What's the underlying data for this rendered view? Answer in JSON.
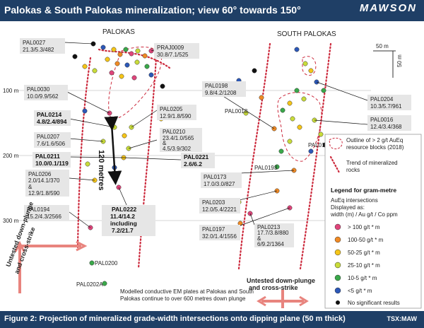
{
  "header": {
    "title": "Palokas & South Palokas mineralization; view 60° towards 150°",
    "logo": "MAWSON"
  },
  "footer": {
    "caption": "Figure 2: Projection of mineralized grade-width intersections onto dipping plane (50 m thick)",
    "tsx": "TSX:MAW"
  },
  "zones": {
    "palokas": "PALOKAS",
    "south_palokas": "SOUTH PALOKAS"
  },
  "depths": [
    "100 m",
    "200 m",
    "300 m"
  ],
  "scale": {
    "label": "50 m",
    "vlabel": "50 m"
  },
  "callout": "120 metres",
  "holes": {
    "pal0027": [
      "PAL0027",
      "21.3/5.3/482"
    ],
    "praj0009": [
      "PRAJ0009",
      "30.8/7.1/525"
    ],
    "pal0030": [
      "PAL0030",
      "10.0/9.9/562"
    ],
    "pal0214": [
      "PAL0214",
      "4.8/2.4/894"
    ],
    "pal0207": [
      "PAL0207",
      "7.6/1.6/506"
    ],
    "pal0211": [
      "PAL0211",
      "10.0/0.1/119"
    ],
    "pal0206": [
      "PAL0206",
      "2.0/14.1/370",
      "&",
      "12.9/1.8/590"
    ],
    "pal0194": [
      "PAL0194",
      "15.2/4.3/2566"
    ],
    "pal0205": [
      "PAL0205",
      "12.9/1.8/590"
    ],
    "pal0210": [
      "PAL0210",
      "23.4/1.0/565",
      "&",
      "4.5/3.9/302"
    ],
    "pal0221": [
      "PAL0221",
      "2.6/6.2"
    ],
    "pal0222": [
      "PAL0222",
      "11.4/14.2",
      "including",
      "7.2/21.7"
    ],
    "pal0173": [
      "PAL0173",
      "17.0/3.0/827"
    ],
    "pal0203": [
      "PAL0203",
      "12.0/5.4/2221"
    ],
    "pal0197": [
      "PAL0197",
      "32.0/1.4/1556"
    ],
    "pal0213": [
      "PAL0213",
      "17.7/3.8/880",
      "&",
      "6/9.2/1364"
    ],
    "pal0198": [
      "PAL0198",
      "9.8/4.2/1208"
    ],
    "pal0204": [
      "PAL0204",
      "10.3/5.7/961"
    ],
    "pal0016": [
      "PAL0016",
      "12.4/3.4/368"
    ],
    "pal0018": "PAL0018",
    "pal0195": "PAL0195",
    "pal0193": "PAL0193",
    "pal0200": "PAL0200",
    "pal0202a": "PAL0202A"
  },
  "notes": {
    "untested_left": [
      "Untested down-plunge",
      "and cross-strike"
    ],
    "untested_bottom": [
      "Untested down-plunge",
      "and cross-strike"
    ],
    "em_plates": [
      "Modelled conductive EM plates at Palokas and South",
      "Palokas continue to over 600 metres down plunge"
    ]
  },
  "legend": {
    "outline": [
      "Outline of > 2 g/t AuEq",
      "resource blocks (2018)"
    ],
    "trend": [
      "Trend of mineralized",
      "rocks"
    ],
    "gm_title": "Legend for gram-metre",
    "sub": [
      "AuEq intersections",
      "Displayed as:",
      "width (m) / Au g/t / Co ppm"
    ],
    "classes": [
      {
        "label": "> 100 g/t * m",
        "color": "#e0457b"
      },
      {
        "label": "100-50 g/t * m",
        "color": "#f08a24"
      },
      {
        "label": "50-25 g/t * m",
        "color": "#f5c518"
      },
      {
        "label": "25-10 g/t * m",
        "color": "#c9dc3a"
      },
      {
        "label": "10-5 g/t * m",
        "color": "#3aa84a"
      },
      {
        "label": "<5 g/t * m",
        "color": "#2c58b8"
      },
      {
        "label": "No significant results",
        "color": "#111111"
      }
    ]
  }
}
